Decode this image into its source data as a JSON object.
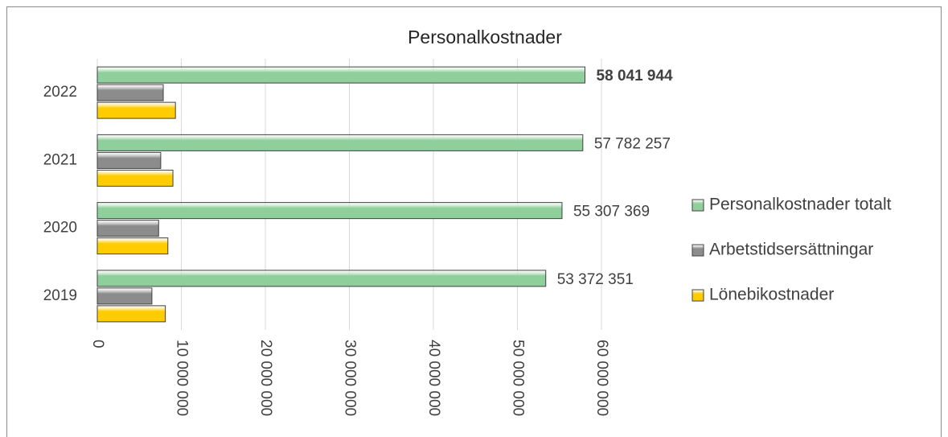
{
  "chart_data": {
    "type": "hbar",
    "title": "Personalkostnader",
    "categories": [
      "2019",
      "2020",
      "2021",
      "2022"
    ],
    "series": [
      {
        "name": "Personalkostnader totalt",
        "color": "#8fcf9b",
        "values": [
          53372351,
          55307369,
          57782257,
          58041944
        ],
        "value_labels": [
          "53 372 351",
          "55 307 369",
          "57 782 257",
          "58 041 944"
        ]
      },
      {
        "name": "Arbetstidsersättningar",
        "color": "#8c8c8c",
        "values": [
          6500000,
          7300000,
          7550000,
          7850000
        ]
      },
      {
        "name": "Lönebikostnader",
        "color": "#ffcc00",
        "values": [
          8100000,
          8400000,
          9000000,
          9300000
        ]
      }
    ],
    "xlim": [
      0,
      60000000
    ],
    "xticks": [
      0,
      {
        "value": 10000000,
        "label": "10 000 000"
      },
      {
        "value": 20000000,
        "label": "20 000 000"
      },
      {
        "value": 30000000,
        "label": "30 000 000"
      },
      {
        "value": 40000000,
        "label": "40 000 000"
      },
      {
        "value": 50000000,
        "label": "50 000 000"
      },
      {
        "value": 60000000,
        "label": "60 000 000"
      }
    ],
    "grid": true,
    "legend": "right"
  }
}
